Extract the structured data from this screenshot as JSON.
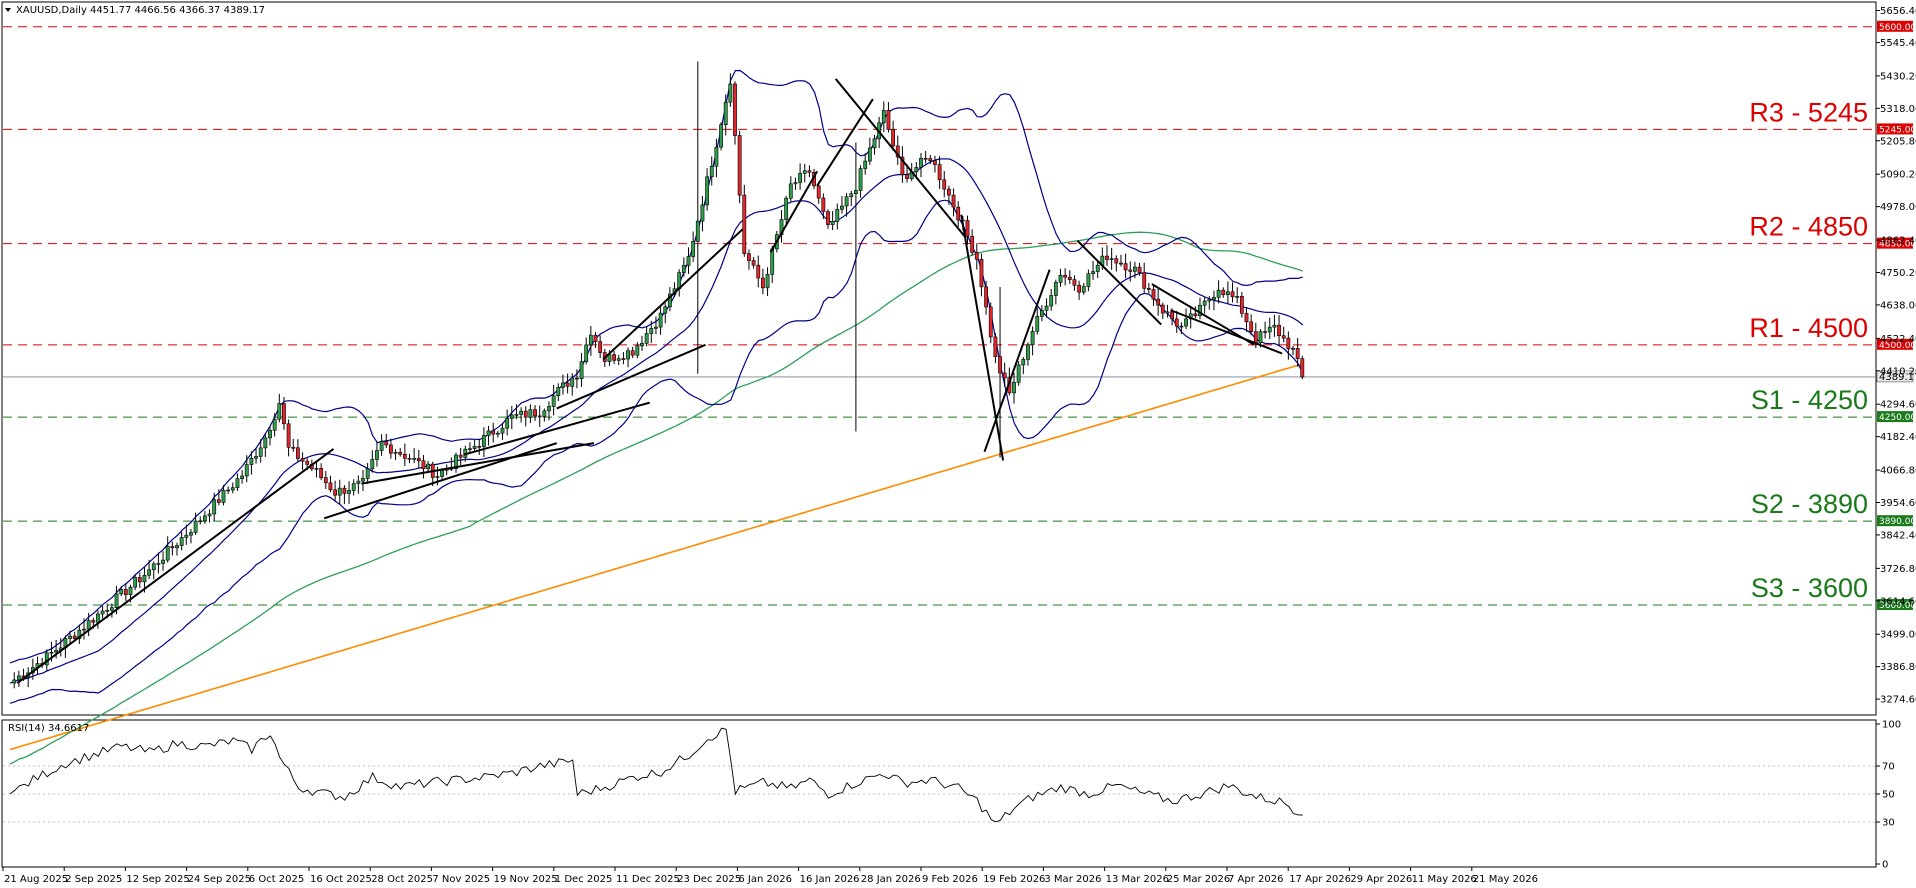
{
  "chart_data": {
    "type": "candlestick",
    "instrument": "XAUUSD,Daily",
    "ohlc_header": "4451.77 4466.56 4366.37 4389.17",
    "last_price": "4389.17",
    "price_axis": {
      "range": [
        3230,
        5665
      ],
      "ticks": [
        "5656.40",
        "5545.40",
        "5430.20",
        "5318.00",
        "5205.80",
        "5090.20",
        "4978.00",
        "4862.40",
        "4750.20",
        "4638.00",
        "4522.40",
        "4410.20",
        "4294.60",
        "4182.40",
        "4066.80",
        "3954.60",
        "3842.40",
        "3726.80",
        "3614.60",
        "3499.00",
        "3386.80",
        "3274.60"
      ]
    },
    "x_axis": {
      "labels": [
        "21 Aug 2025",
        "2 Sep 2025",
        "12 Sep 2025",
        "24 Sep 2025",
        "6 Oct 2025",
        "16 Oct 2025",
        "28 Oct 2025",
        "7 Nov 2025",
        "19 Nov 2025",
        "1 Dec 2025",
        "11 Dec 2025",
        "23 Dec 2025",
        "6 Jan 2026",
        "16 Jan 2026",
        "28 Jan 2026",
        "9 Feb 2026",
        "19 Feb 2026",
        "3 Mar 2026",
        "13 Mar 2026",
        "25 Mar 2026",
        "7 Apr 2026",
        "17 Apr 2026",
        "29 Apr 2026",
        "11 May 2026",
        "21 May 2026"
      ],
      "total_bars": 200
    },
    "levels": [
      {
        "label": "R3 - 5245",
        "value": 5245,
        "tag": "5245.00",
        "color": "#dd0000"
      },
      {
        "label": "R2 - 4850",
        "value": 4850,
        "tag": "4850.00",
        "color": "#dd0000"
      },
      {
        "label": "R1 - 4500",
        "value": 4500,
        "tag": "4500.00",
        "color": "#dd0000"
      },
      {
        "label": "S1 - 4250",
        "value": 4250,
        "tag": "4250.00",
        "color": "#1a7a1a"
      },
      {
        "label": "S2 - 3890",
        "value": 3890,
        "tag": "3890.00",
        "color": "#1a7a1a"
      },
      {
        "label": "S3 - 3600",
        "value": 3600,
        "tag": "3600.00",
        "color": "#1a7a1a"
      }
    ],
    "top_line": {
      "value": 5600,
      "tag": "5600.00",
      "color": "#dd0000"
    },
    "anchors": [
      [
        0,
        3330
      ],
      [
        8,
        3420
      ],
      [
        20,
        3580
      ],
      [
        30,
        3720
      ],
      [
        40,
        3880
      ],
      [
        50,
        4050
      ],
      [
        55,
        4180
      ],
      [
        58,
        4300
      ],
      [
        60,
        4140
      ],
      [
        66,
        4060
      ],
      [
        70,
        3990
      ],
      [
        76,
        4020
      ],
      [
        80,
        4160
      ],
      [
        86,
        4110
      ],
      [
        92,
        4050
      ],
      [
        100,
        4150
      ],
      [
        108,
        4250
      ],
      [
        114,
        4270
      ],
      [
        118,
        4340
      ],
      [
        122,
        4400
      ],
      [
        125,
        4550
      ],
      [
        128,
        4450
      ],
      [
        134,
        4480
      ],
      [
        140,
        4600
      ],
      [
        146,
        4800
      ],
      [
        152,
        5200
      ],
      [
        155,
        5420
      ],
      [
        158,
        4820
      ],
      [
        162,
        4700
      ],
      [
        168,
        5050
      ],
      [
        172,
        5100
      ],
      [
        176,
        4900
      ],
      [
        182,
        5050
      ],
      [
        188,
        5300
      ],
      [
        192,
        5080
      ],
      [
        198,
        5150
      ],
      [
        204,
        4950
      ],
      [
        208,
        4800
      ],
      [
        212,
        4450
      ],
      [
        215,
        4330
      ],
      [
        220,
        4550
      ],
      [
        226,
        4750
      ],
      [
        230,
        4700
      ],
      [
        236,
        4810
      ],
      [
        242,
        4760
      ],
      [
        248,
        4620
      ],
      [
        252,
        4560
      ],
      [
        256,
        4620
      ],
      [
        260,
        4700
      ],
      [
        264,
        4650
      ],
      [
        268,
        4520
      ],
      [
        272,
        4560
      ],
      [
        276,
        4480
      ],
      [
        278,
        4389
      ]
    ],
    "spikes": [
      [
        148,
        5480,
        4400
      ],
      [
        182,
        4200,
        5200
      ],
      [
        213,
        4110,
        4700
      ]
    ],
    "indicators": [
      {
        "name": "bollinger",
        "color": "#00008b"
      },
      {
        "name": "ma_mid",
        "color": "#2ca05a"
      },
      {
        "name": "ma_long",
        "color": "#ff8c00"
      }
    ],
    "rsi": {
      "label": "RSI(14) 34.6617",
      "range": [
        0,
        100
      ],
      "ticks": [
        "100",
        "70",
        "50",
        "30",
        "0"
      ],
      "anchors": [
        [
          0,
          50
        ],
        [
          6,
          62
        ],
        [
          12,
          72
        ],
        [
          18,
          78
        ],
        [
          24,
          84
        ],
        [
          30,
          80
        ],
        [
          36,
          86
        ],
        [
          42,
          84
        ],
        [
          48,
          88
        ],
        [
          52,
          82
        ],
        [
          56,
          94
        ],
        [
          58,
          76
        ],
        [
          62,
          55
        ],
        [
          68,
          50
        ],
        [
          72,
          48
        ],
        [
          78,
          62
        ],
        [
          84,
          55
        ],
        [
          90,
          58
        ],
        [
          96,
          60
        ],
        [
          102,
          62
        ],
        [
          108,
          65
        ],
        [
          114,
          70
        ],
        [
          118,
          72
        ],
        [
          121,
          74
        ],
        [
          122,
          50
        ],
        [
          128,
          55
        ],
        [
          134,
          62
        ],
        [
          140,
          66
        ],
        [
          146,
          78
        ],
        [
          150,
          90
        ],
        [
          154,
          96
        ],
        [
          156,
          52
        ],
        [
          162,
          58
        ],
        [
          168,
          54
        ],
        [
          172,
          60
        ],
        [
          176,
          50
        ],
        [
          182,
          58
        ],
        [
          188,
          65
        ],
        [
          192,
          58
        ],
        [
          198,
          60
        ],
        [
          204,
          54
        ],
        [
          208,
          45
        ],
        [
          212,
          28
        ],
        [
          216,
          40
        ],
        [
          220,
          48
        ],
        [
          226,
          55
        ],
        [
          232,
          50
        ],
        [
          238,
          56
        ],
        [
          244,
          50
        ],
        [
          250,
          45
        ],
        [
          256,
          50
        ],
        [
          262,
          56
        ],
        [
          268,
          48
        ],
        [
          274,
          44
        ],
        [
          278,
          35
        ]
      ]
    }
  }
}
